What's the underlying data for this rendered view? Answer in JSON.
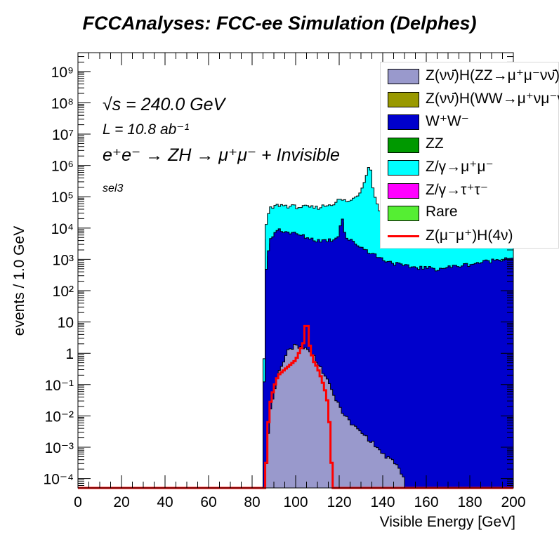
{
  "title": "FCCAnalyses: FCC-ee Simulation (Delphes)",
  "annotations": {
    "sqrt_s": "√s = 240.0 GeV",
    "lumi": "L = 10.8 ab⁻¹",
    "process": "e⁺e⁻ → ZH → μ⁺μ⁻ + Invisible",
    "selection": "sel3"
  },
  "chart_data": {
    "type": "histogram",
    "xlabel": "Visible Energy [GeV]",
    "ylabel": "events / 1.0 GeV",
    "xlim": [
      0,
      200
    ],
    "ylim": [
      5e-05,
      4000000000
    ],
    "yscale": "log",
    "x_ticks": [
      "0",
      "20",
      "40",
      "60",
      "80",
      "100",
      "120",
      "140",
      "160",
      "180",
      "200"
    ],
    "y_ticks": [
      {
        "value": 0.0001,
        "label": "10⁻⁴"
      },
      {
        "value": 0.001,
        "label": "10⁻³"
      },
      {
        "value": 0.01,
        "label": "10⁻²"
      },
      {
        "value": 0.1,
        "label": "10⁻¹"
      },
      {
        "value": 1,
        "label": "1"
      },
      {
        "value": 10,
        "label": "10"
      },
      {
        "value": 100,
        "label": "10²"
      },
      {
        "value": 1000,
        "label": "10³"
      },
      {
        "value": 10000,
        "label": "10⁴"
      },
      {
        "value": 100000,
        "label": "10⁵"
      },
      {
        "value": 1000000,
        "label": "10⁶"
      },
      {
        "value": 10000000,
        "label": "10⁷"
      },
      {
        "value": 100000000,
        "label": "10⁸"
      },
      {
        "value": 1000000000,
        "label": "10⁹"
      }
    ],
    "legend_position": "top-right",
    "stacked_series_cumulative": [
      {
        "name": "Rare",
        "color": "#55ee33",
        "points": [
          [
            85,
            5e-05
          ],
          [
            86,
            3000
          ],
          [
            88,
            11000
          ],
          [
            92,
            13000
          ],
          [
            100,
            12000
          ],
          [
            110,
            13000
          ],
          [
            117,
            17000
          ],
          [
            120,
            20000
          ],
          [
            125,
            18000
          ],
          [
            130,
            25000
          ],
          [
            135,
            70000
          ],
          [
            138,
            20000
          ],
          [
            145,
            7000
          ],
          [
            160,
            8000
          ],
          [
            180,
            15000
          ],
          [
            200,
            25000
          ]
        ]
      },
      {
        "name": "Z/γ→μ⁺μ⁻",
        "color": "#00ffff",
        "points": [
          [
            85,
            5e-05
          ],
          [
            86,
            9000
          ],
          [
            88,
            40000
          ],
          [
            92,
            55000
          ],
          [
            100,
            48000
          ],
          [
            110,
            45000
          ],
          [
            117,
            60000
          ],
          [
            120,
            80000
          ],
          [
            125,
            70000
          ],
          [
            130,
            150000
          ],
          [
            134,
            1200000
          ],
          [
            136,
            120000
          ],
          [
            140,
            20000
          ],
          [
            145,
            8000
          ],
          [
            160,
            9000
          ],
          [
            180,
            16000
          ],
          [
            200,
            26000
          ]
        ]
      },
      {
        "name": "Z/γ→τ⁺τ⁻",
        "color": "#ff00ff",
        "points": [
          [
            85,
            5e-05
          ],
          [
            86,
            150
          ],
          [
            88,
            1500
          ],
          [
            90,
            2500
          ],
          [
            92,
            3000
          ],
          [
            100,
            1500
          ],
          [
            110,
            500
          ],
          [
            120,
            250
          ],
          [
            140,
            70
          ],
          [
            160,
            25
          ],
          [
            180,
            12
          ],
          [
            200,
            6
          ]
        ]
      },
      {
        "name": "ZZ",
        "color": "#009900",
        "points": [
          [
            85,
            5e-05
          ],
          [
            86,
            200
          ],
          [
            88,
            2500
          ],
          [
            90,
            4500
          ],
          [
            92,
            5500
          ],
          [
            100,
            4000
          ],
          [
            110,
            1800
          ],
          [
            117,
            1500
          ],
          [
            120,
            3000
          ],
          [
            121,
            25000
          ],
          [
            123,
            2000
          ],
          [
            130,
            600
          ],
          [
            140,
            300
          ],
          [
            150,
            200
          ],
          [
            165,
            150
          ],
          [
            180,
            200
          ],
          [
            200,
            400
          ]
        ]
      },
      {
        "name": "W⁺W⁻",
        "color": "#0000cc",
        "points": [
          [
            85,
            5e-05
          ],
          [
            86,
            300
          ],
          [
            88,
            3500
          ],
          [
            90,
            7000
          ],
          [
            92,
            9000
          ],
          [
            100,
            6500
          ],
          [
            110,
            4000
          ],
          [
            117,
            4200
          ],
          [
            120,
            6000
          ],
          [
            121,
            30000
          ],
          [
            123,
            5000
          ],
          [
            130,
            2500
          ],
          [
            140,
            1000
          ],
          [
            150,
            600
          ],
          [
            165,
            500
          ],
          [
            180,
            700
          ],
          [
            200,
            1200
          ]
        ]
      },
      {
        "name": "Z(νν̄)H(WW→μ⁺νμ⁻ν̄)",
        "color": "#999900",
        "points": [
          [
            86,
            0.0001
          ],
          [
            88,
            0.0015
          ],
          [
            92,
            0.004
          ],
          [
            98,
            0.006
          ],
          [
            104,
            0.004
          ],
          [
            110,
            0.002
          ],
          [
            114,
            0.001
          ],
          [
            117,
            0.0001
          ]
        ]
      },
      {
        "name": "Z(νν̄)H(ZZ→μ⁺μ⁻νν̄)",
        "color": "#9999cc",
        "points": [
          [
            86,
            0.0001
          ],
          [
            88,
            0.01
          ],
          [
            92,
            0.2
          ],
          [
            96,
            1.2
          ],
          [
            100,
            1.8
          ],
          [
            104,
            1.5
          ],
          [
            108,
            0.9
          ],
          [
            112,
            0.3
          ],
          [
            116,
            0.08
          ],
          [
            120,
            0.02
          ],
          [
            125,
            0.006
          ],
          [
            130,
            0.003
          ],
          [
            135,
            0.0015
          ],
          [
            140,
            0.0006
          ],
          [
            146,
            0.0003
          ],
          [
            150,
            0.0001
          ]
        ]
      }
    ],
    "signal": {
      "name": "Z(μ⁻μ⁺)H(4ν)",
      "color": "#ff0000",
      "points": [
        [
          84,
          5e-05
        ],
        [
          86,
          5e-05
        ],
        [
          87,
          0.002
        ],
        [
          88,
          0.02
        ],
        [
          90,
          0.08
        ],
        [
          92,
          0.2
        ],
        [
          96,
          0.35
        ],
        [
          100,
          0.6
        ],
        [
          104,
          2.5
        ],
        [
          105,
          22
        ],
        [
          106,
          2.5
        ],
        [
          108,
          0.6
        ],
        [
          110,
          0.35
        ],
        [
          112,
          0.15
        ],
        [
          114,
          0.05
        ],
        [
          115,
          0.02
        ],
        [
          116,
          0.002
        ],
        [
          117,
          5e-05
        ],
        [
          200,
          5e-05
        ]
      ]
    }
  },
  "legend": [
    {
      "label": "Z(νν̄)H(ZZ→μ⁺μ⁻νν̄)",
      "color": "#9999cc",
      "style": "fill"
    },
    {
      "label": "Z(νν̄)H(WW→μ⁺νμ⁻ν̄)",
      "color": "#999900",
      "style": "fill"
    },
    {
      "label": "W⁺W⁻",
      "color": "#0000cc",
      "style": "fill"
    },
    {
      "label": "ZZ",
      "color": "#009900",
      "style": "fill"
    },
    {
      "label": "Z/γ→μ⁺μ⁻",
      "color": "#00ffff",
      "style": "fill"
    },
    {
      "label": "Z/γ→τ⁺τ⁻",
      "color": "#ff00ff",
      "style": "fill"
    },
    {
      "label": "Rare",
      "color": "#55ee33",
      "style": "fill"
    },
    {
      "label": "Z(μ⁻μ⁺)H(4ν)",
      "color": "#ff0000",
      "style": "line"
    }
  ]
}
